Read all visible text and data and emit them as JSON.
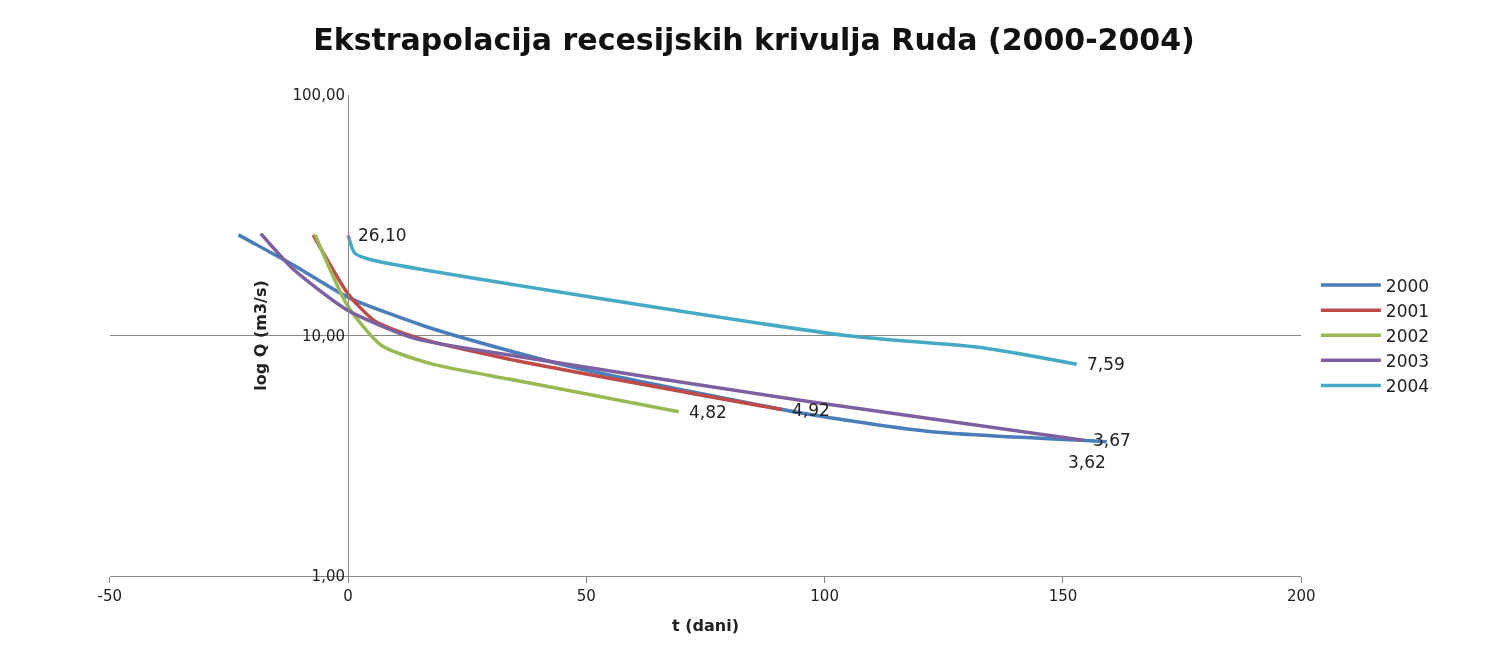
{
  "chart_data": {
    "type": "line",
    "title": "Ekstrapolacija recesijskih krivulja Ruda (2000-2004)",
    "xlabel": "t (dani)",
    "ylabel": "log Q (m3/s)",
    "xlim": [
      -50,
      200
    ],
    "xticks": [
      -50,
      0,
      50,
      100,
      150,
      200
    ],
    "log": "y",
    "ylim": [
      1,
      100
    ],
    "yticks": [
      {
        "value": 1,
        "label": "1,00"
      },
      {
        "value": 10,
        "label": "10,00"
      },
      {
        "value": 100,
        "label": "100,00"
      }
    ],
    "grid": "y",
    "legend": "right",
    "marker": "none",
    "line_style": "solid",
    "series": [
      {
        "name": "2000",
        "color": "#4a7ebb",
        "x": [
          -23.0,
          -11.4,
          0,
          16.3,
          33.3,
          49.6,
          97.0,
          122.5,
          159.2
        ],
        "values": [
          26.2,
          19.6,
          14.4,
          10.9,
          8.7,
          7.2,
          4.69,
          3.98,
          3.62
        ]
      },
      {
        "name": "2001",
        "color": "#be4b48",
        "x": [
          -7.3,
          0,
          5.6,
          14.1,
          35.4,
          75.7,
          91.0
        ],
        "values": [
          26.2,
          14.9,
          11.5,
          9.84,
          7.85,
          5.58,
          4.92
        ]
      },
      {
        "name": "2002",
        "color": "#98b954",
        "x": [
          -6.9,
          0,
          7.1,
          17.7,
          35.4,
          69.4
        ],
        "values": [
          26.2,
          13.2,
          9.06,
          7.6,
          6.5,
          4.82
        ]
      },
      {
        "name": "2003",
        "color": "#7d60a0",
        "x": [
          -18.3,
          -11.4,
          0,
          14.1,
          35.4,
          97.0,
          154.3
        ],
        "values": [
          26.5,
          18.8,
          12.7,
          9.7,
          8.2,
          5.3,
          3.67
        ]
      },
      {
        "name": "2004",
        "color": "#46aac5",
        "x": [
          0,
          1.4,
          4.6,
          104.4,
          133.1,
          152.9
        ],
        "values": [
          26.1,
          22.0,
          20.7,
          10.0,
          8.9,
          7.59
        ]
      }
    ],
    "annotations": [
      {
        "text": "26,10",
        "x": 0,
        "y": 26.1
      },
      {
        "text": "4,82",
        "x": 69.4,
        "y": 4.82
      },
      {
        "text": "4,92",
        "x": 91.0,
        "y": 4.92
      },
      {
        "text": "7,59",
        "x": 152.9,
        "y": 7.59
      },
      {
        "text": "3,67",
        "x": 154.3,
        "y": 3.67
      },
      {
        "text": "3,62",
        "x": 159.2,
        "y": 3.62
      }
    ]
  }
}
